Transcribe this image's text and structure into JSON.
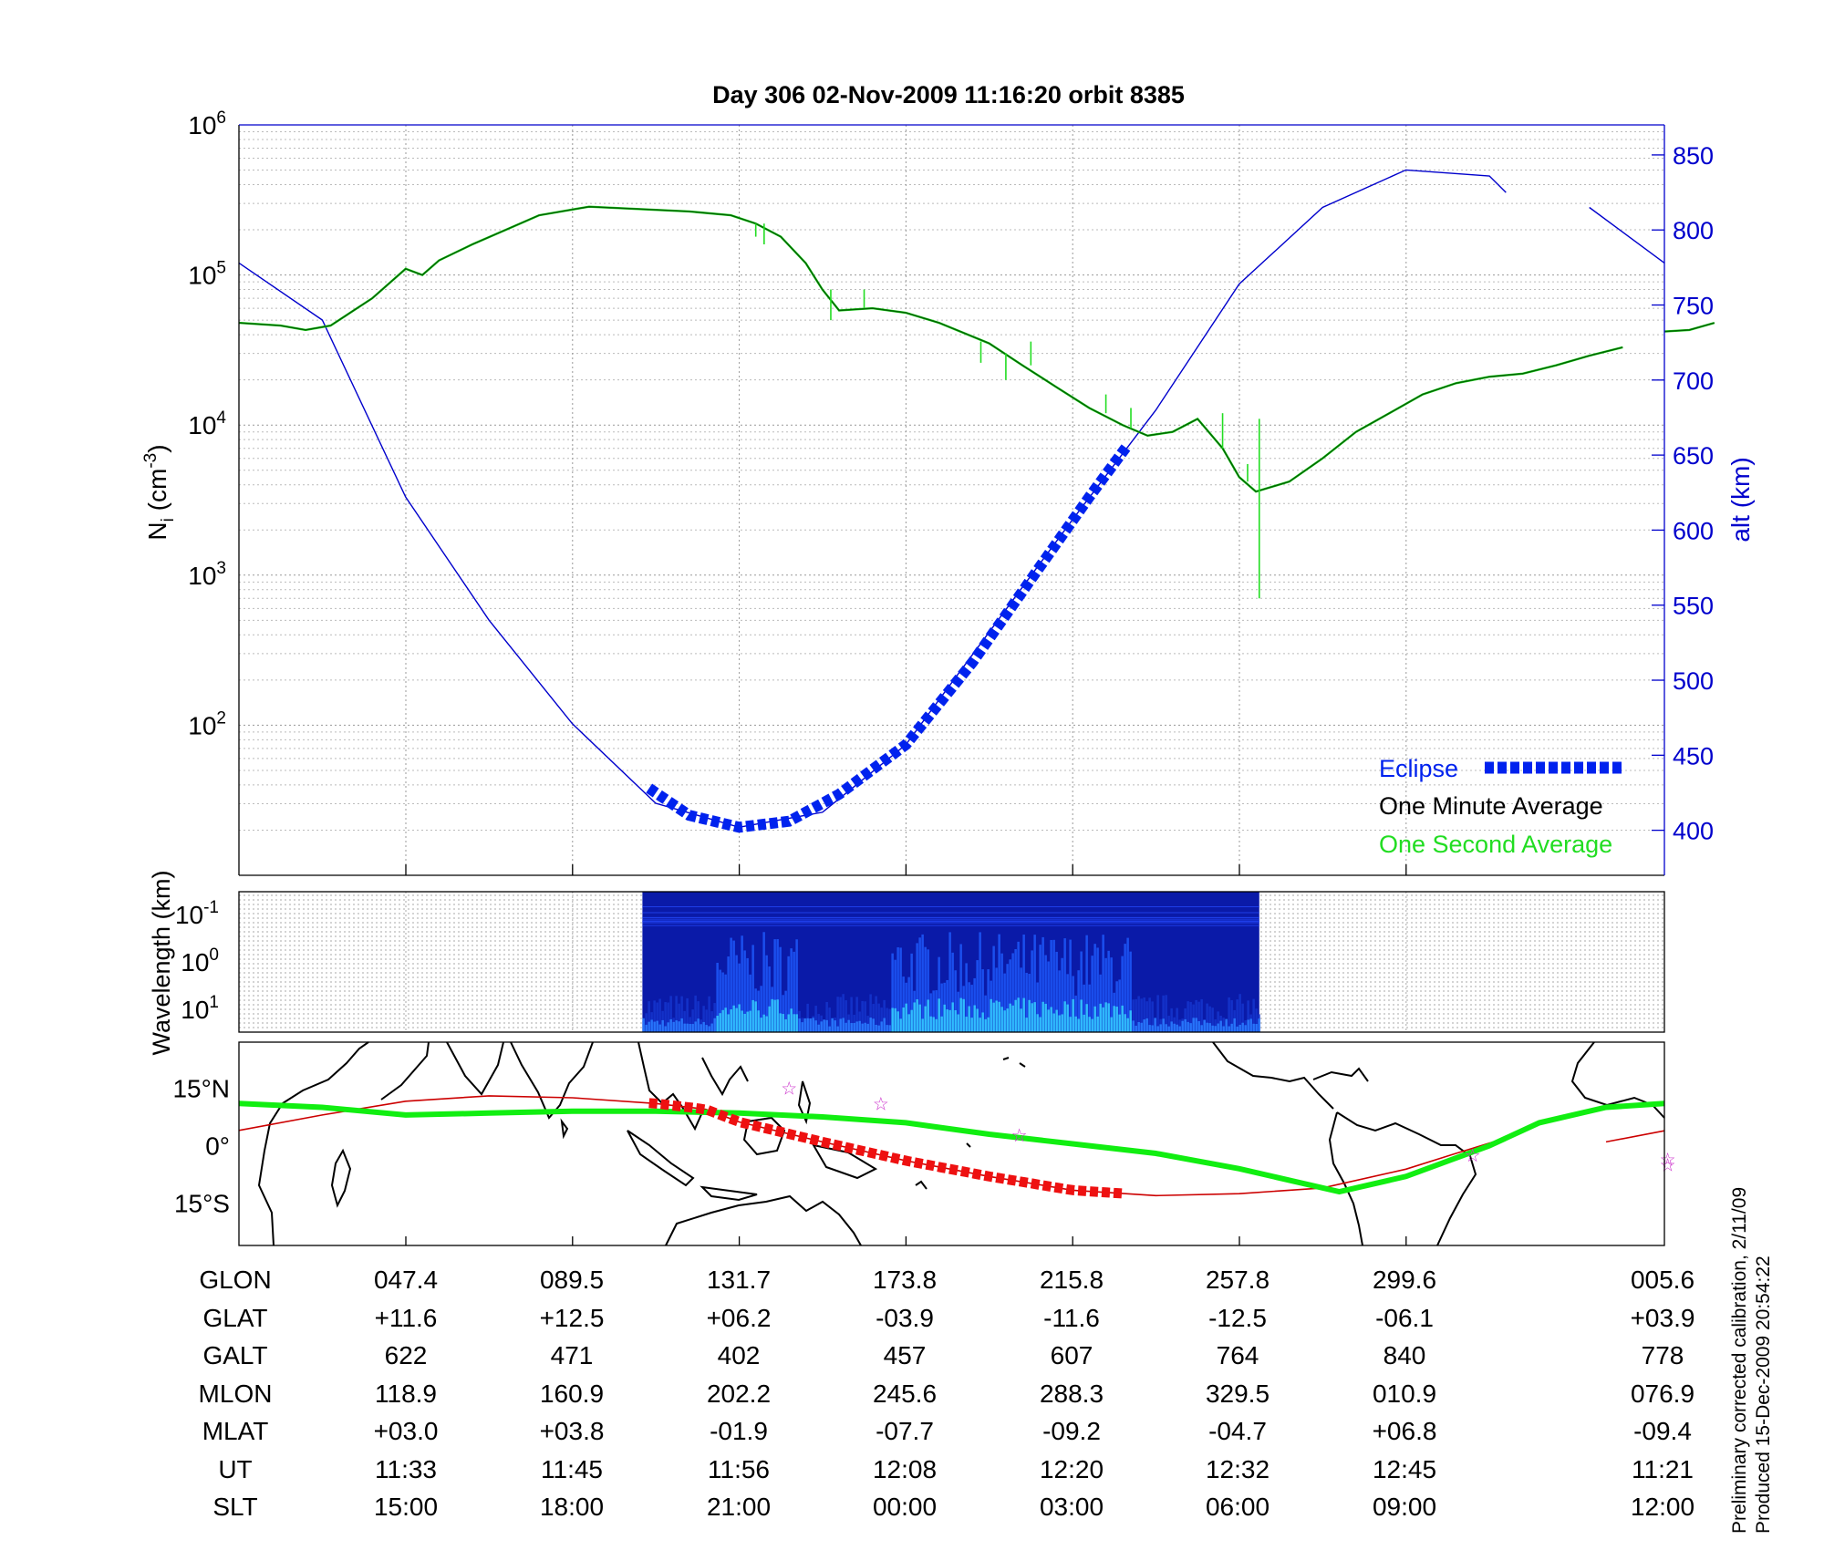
{
  "title": "Day 306  02-Nov-2009 11:16:20   orbit 8385",
  "colors": {
    "density_minute": "#006400",
    "density_second": "#22dd22",
    "altitude": "#0000cc",
    "eclipse": "#0022ee",
    "orbit_track": "#cc0000",
    "eclipse_track": "#ee1111",
    "magnetic_equator": "#11ee11",
    "station": "#cc33cc"
  },
  "chart_data": [
    {
      "type": "line",
      "panel": "density",
      "ylabel": "N",
      "ylabel_sub": "i",
      "ylabel_unit_pre": " (cm",
      "ylabel_unit_exp": "-3",
      "ylabel_unit_post": ")",
      "yscale": "log",
      "ylim": [
        10,
        1000000
      ],
      "yticks": [
        {
          "base": "10",
          "exp": "2",
          "value": 100
        },
        {
          "base": "10",
          "exp": "3",
          "value": 1000
        },
        {
          "base": "10",
          "exp": "4",
          "value": 10000
        },
        {
          "base": "10",
          "exp": "5",
          "value": 100000
        },
        {
          "base": "10",
          "exp": "6",
          "value": 1000000
        }
      ],
      "xlim": [
        0,
        8.55
      ],
      "x_unit": "index of labelled column (047.4 = 1, 089.5 = 2, ... 005.6 = 8.55)",
      "y2label": "alt (km)",
      "y2lim": [
        370,
        870
      ],
      "y2ticks": [
        "400",
        "450",
        "500",
        "550",
        "600",
        "650",
        "700",
        "750",
        "800",
        "850"
      ],
      "grid": true,
      "legend_position": "bottom-right",
      "legend": [
        {
          "label": "Eclipse",
          "series": "eclipse"
        },
        {
          "label": "One Minute Average",
          "series": "minute"
        },
        {
          "label": "One Second Average",
          "series": "second"
        }
      ],
      "series": [
        {
          "name": "One Minute Average",
          "key": "minute",
          "segments": [
            [
              [
                0,
                48000
              ],
              [
                0.25,
                46000
              ],
              [
                0.4,
                43000
              ],
              [
                0.55,
                46000
              ],
              [
                0.8,
                70000
              ],
              [
                1.0,
                110000
              ],
              [
                1.1,
                100000
              ],
              [
                1.2,
                125000
              ],
              [
                1.4,
                160000
              ],
              [
                1.6,
                200000
              ],
              [
                1.8,
                250000
              ],
              [
                2.1,
                285000
              ],
              [
                2.4,
                275000
              ],
              [
                2.7,
                265000
              ],
              [
                2.95,
                250000
              ],
              [
                3.1,
                220000
              ],
              [
                3.25,
                180000
              ],
              [
                3.4,
                120000
              ],
              [
                3.5,
                80000
              ],
              [
                3.6,
                58000
              ],
              [
                3.8,
                60000
              ],
              [
                4.0,
                56000
              ],
              [
                4.2,
                48000
              ],
              [
                4.5,
                35000
              ],
              [
                4.7,
                25000
              ],
              [
                4.9,
                18000
              ],
              [
                5.1,
                13000
              ],
              [
                5.3,
                10000
              ],
              [
                5.45,
                8500
              ],
              [
                5.6,
                9000
              ],
              [
                5.75,
                11000
              ],
              [
                5.9,
                7000
              ],
              [
                6.0,
                4500
              ],
              [
                6.1,
                3600
              ],
              [
                6.3,
                4200
              ],
              [
                6.5,
                6000
              ],
              [
                6.7,
                9000
              ],
              [
                6.9,
                12000
              ],
              [
                7.1,
                16000
              ],
              [
                7.3,
                19000
              ],
              [
                7.5,
                21000
              ],
              [
                7.7,
                22000
              ],
              [
                7.9,
                25000
              ],
              [
                8.1,
                29000
              ],
              [
                8.3,
                33000
              ]
            ],
            [
              [
                8.55,
                42000
              ],
              [
                8.7,
                43000
              ],
              [
                8.85,
                48000
              ]
            ]
          ]
        },
        {
          "name": "One Second Average",
          "key": "second",
          "spikes": [
            {
              "x": 3.1,
              "y_from": 220000,
              "y_to": 180000
            },
            {
              "x": 3.15,
              "y_from": 220000,
              "y_to": 160000
            },
            {
              "x": 3.55,
              "y_from": 80000,
              "y_to": 50000
            },
            {
              "x": 3.75,
              "y_from": 60000,
              "y_to": 80000
            },
            {
              "x": 4.45,
              "y_from": 36000,
              "y_to": 26000
            },
            {
              "x": 4.6,
              "y_from": 30000,
              "y_to": 20000
            },
            {
              "x": 4.75,
              "y_from": 25000,
              "y_to": 36000
            },
            {
              "x": 5.2,
              "y_from": 12000,
              "y_to": 16000
            },
            {
              "x": 5.35,
              "y_from": 9500,
              "y_to": 13000
            },
            {
              "x": 5.9,
              "y_from": 7000,
              "y_to": 12000
            },
            {
              "x": 6.05,
              "y_from": 4200,
              "y_to": 5500
            },
            {
              "x": 6.12,
              "y_from": 11000,
              "y_to": 700
            }
          ]
        },
        {
          "name": "alt (km)",
          "key": "altitude",
          "segments": [
            [
              [
                0,
                778
              ],
              [
                0.5,
                740
              ],
              [
                1.0,
                622
              ],
              [
                1.5,
                540
              ],
              [
                2.0,
                471
              ],
              [
                2.5,
                418
              ],
              [
                3.0,
                402
              ],
              [
                3.5,
                412
              ],
              [
                4.0,
                457
              ],
              [
                4.5,
                532
              ],
              [
                5.0,
                607
              ],
              [
                5.5,
                680
              ],
              [
                6.0,
                764
              ],
              [
                6.5,
                815
              ],
              [
                7.0,
                840
              ],
              [
                7.5,
                836
              ],
              [
                7.6,
                825
              ]
            ],
            [
              [
                8.1,
                815
              ],
              [
                8.55,
                778
              ]
            ]
          ]
        },
        {
          "name": "Eclipse",
          "key": "eclipse",
          "segments": [
            [
              [
                2.46,
                428
              ],
              [
                2.7,
                410
              ],
              [
                3.0,
                402
              ],
              [
                3.3,
                406
              ],
              [
                3.6,
                424
              ],
              [
                4.0,
                457
              ],
              [
                4.4,
                512
              ],
              [
                4.8,
                575
              ],
              [
                5.1,
                622
              ],
              [
                5.32,
                655
              ]
            ]
          ]
        }
      ]
    },
    {
      "type": "heatmap",
      "panel": "wavelength",
      "ylabel": "Wavelength (km)",
      "yscale": "log",
      "yticks": [
        {
          "base": "10",
          "exp": "-1",
          "value": 0.1
        },
        {
          "base": "10",
          "exp": "0",
          "value": 1
        },
        {
          "base": "10",
          "exp": "1",
          "value": 10
        }
      ],
      "x_range": [
        2.42,
        6.12
      ],
      "colormap": "jet",
      "intense_ranges": [
        [
          2.85,
          3.35
        ],
        [
          3.9,
          5.35
        ]
      ]
    },
    {
      "type": "line",
      "panel": "map",
      "yticks": [
        {
          "label": "15°N",
          "value": 15
        },
        {
          "label": "0°",
          "value": 0
        },
        {
          "label": "15°S",
          "value": -15
        }
      ],
      "ylim": [
        -26,
        27
      ],
      "series": [
        {
          "name": "orbit track",
          "key": "track",
          "points": [
            [
              0,
              4
            ],
            [
              0.5,
              8
            ],
            [
              1.0,
              11.6
            ],
            [
              1.5,
              13
            ],
            [
              2.0,
              12.5
            ],
            [
              2.5,
              11
            ],
            [
              2.8,
              9.5
            ],
            [
              3.0,
              6.2
            ],
            [
              3.5,
              1
            ],
            [
              4.0,
              -3.9
            ],
            [
              4.5,
              -8
            ],
            [
              5.0,
              -11.6
            ],
            [
              5.5,
              -13
            ],
            [
              6.0,
              -12.5
            ],
            [
              6.5,
              -11
            ],
            [
              7.0,
              -6.1
            ],
            [
              7.3,
              -2
            ],
            [
              7.6,
              2
            ]
          ],
          "tail": [
            [
              8.2,
              1
            ],
            [
              8.55,
              3.9
            ]
          ]
        },
        {
          "name": "magnetic equator",
          "key": "equator",
          "points": [
            [
              0,
              11
            ],
            [
              0.5,
              10
            ],
            [
              1.0,
              8
            ],
            [
              1.5,
              8.5
            ],
            [
              2.0,
              9
            ],
            [
              2.5,
              9
            ],
            [
              3.0,
              8.5
            ],
            [
              3.5,
              7.5
            ],
            [
              4.0,
              6
            ],
            [
              4.5,
              3
            ],
            [
              5.0,
              0.5
            ],
            [
              5.5,
              -2
            ],
            [
              6.0,
              -6
            ],
            [
              6.6,
              -12
            ],
            [
              7.0,
              -8
            ],
            [
              7.5,
              0
            ],
            [
              7.8,
              6
            ],
            [
              8.2,
              10
            ],
            [
              8.55,
              11
            ]
          ]
        },
        {
          "name": "eclipse track",
          "key": "eclipse_track",
          "range": [
            2.46,
            5.32
          ]
        }
      ],
      "stations": [
        [
          3.3,
          15
        ],
        [
          3.85,
          11
        ],
        [
          4.68,
          2.8
        ],
        [
          7.4,
          -2.5
        ],
        [
          8.57,
          -3.5
        ],
        [
          8.57,
          -5
        ]
      ],
      "coastlines": "world map background"
    }
  ],
  "orbit_table": {
    "columns": 8,
    "rows": [
      {
        "label": "GLON",
        "values": [
          "047.4",
          "089.5",
          "131.7",
          "173.8",
          "215.8",
          "257.8",
          "299.6",
          "005.6"
        ]
      },
      {
        "label": "GLAT",
        "values": [
          "+11.6",
          "+12.5",
          "+06.2",
          "-03.9",
          "-11.6",
          "-12.5",
          "-06.1",
          "+03.9"
        ]
      },
      {
        "label": "GALT",
        "values": [
          "622",
          "471",
          "402",
          "457",
          "607",
          "764",
          "840",
          "778"
        ]
      },
      {
        "label": "MLON",
        "values": [
          "118.9",
          "160.9",
          "202.2",
          "245.6",
          "288.3",
          "329.5",
          "010.9",
          "076.9"
        ]
      },
      {
        "label": "MLAT",
        "values": [
          "+03.0",
          "+03.8",
          "-01.9",
          "-07.7",
          "-09.2",
          "-04.7",
          "+06.8",
          "-09.4"
        ]
      },
      {
        "label": "UT",
        "values": [
          "11:33",
          "11:45",
          "11:56",
          "12:08",
          "12:20",
          "12:32",
          "12:45",
          "11:21"
        ]
      },
      {
        "label": "SLT",
        "values": [
          "15:00",
          "18:00",
          "21:00",
          "00:00",
          "03:00",
          "06:00",
          "09:00",
          "12:00"
        ]
      }
    ]
  },
  "side_notes": [
    "Preliminary corrected calibration, 2/11/09",
    "Produced 15-Dec-2009 20:54:22"
  ]
}
